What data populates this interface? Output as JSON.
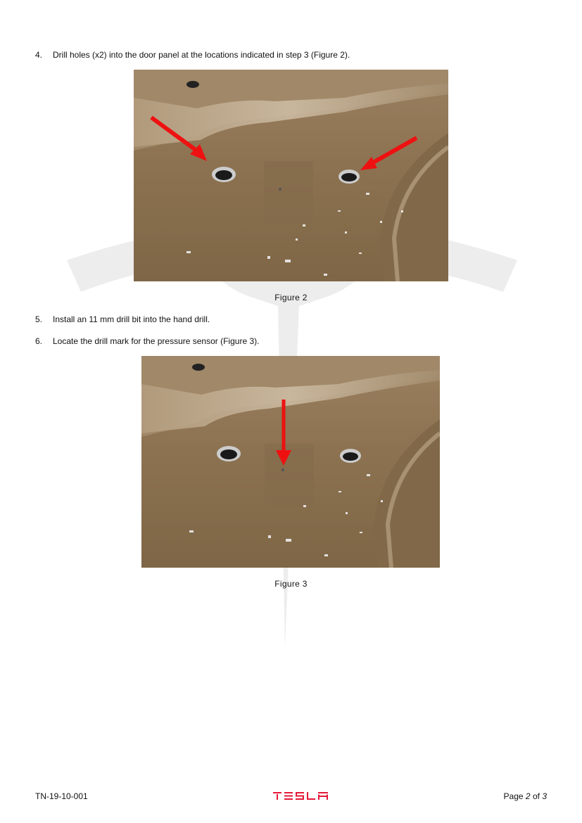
{
  "steps": [
    {
      "num": "4.",
      "text": "Drill holes (x2) into the door panel at the locations indicated in step 3 (Figure 2)."
    },
    {
      "num": "5.",
      "text": "Install an 11 mm drill bit into the hand drill."
    },
    {
      "num": "6.",
      "text": "Locate the drill mark for the pressure sensor (Figure 3)."
    }
  ],
  "figures": [
    {
      "caption": "Figure 2"
    },
    {
      "caption": "Figure 3"
    }
  ],
  "footer": {
    "doc_id": "TN-19-10-001",
    "page_word": "Page",
    "page_current": "2",
    "page_of": "of",
    "page_total": "3",
    "brand": "TESLA"
  },
  "colors": {
    "panel": "#8c7250",
    "arrow": "#ee1111",
    "logo": "#e31937",
    "watermark": "#ededed"
  }
}
